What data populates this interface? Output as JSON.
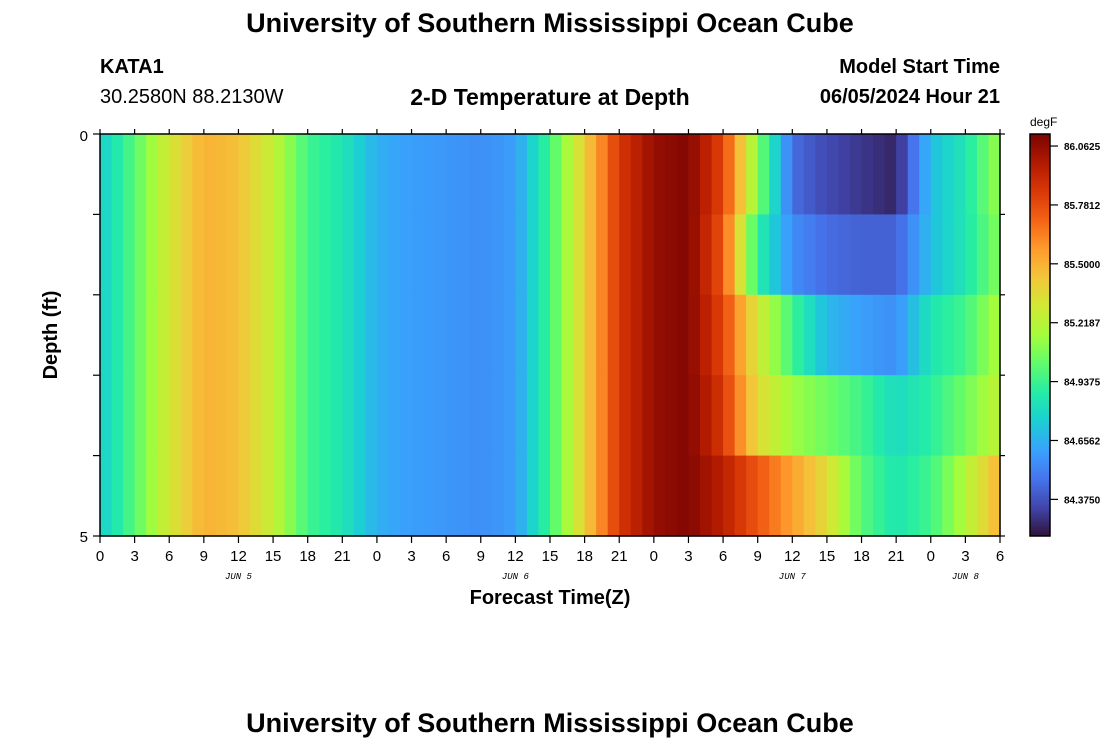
{
  "header": {
    "title": "University of Southern Mississippi Ocean Cube",
    "station_id": "KATA1",
    "coordinates": "30.2580N  88.2130W",
    "subtitle": "2-D Temperature at Depth",
    "model_start_label": "Model Start Time",
    "model_start_value": "06/05/2024 Hour 21"
  },
  "footer": {
    "title": "University of Southern Mississippi Ocean Cube"
  },
  "colors": {
    "colormap": [
      "#30123b",
      "#4145ab",
      "#4675ed",
      "#39a2fc",
      "#1bcfd4",
      "#24eca6",
      "#61fc6c",
      "#a4fc3b",
      "#d1e834",
      "#f3c63a",
      "#fe9b2d",
      "#f36315",
      "#d93806",
      "#b11901",
      "#7a0402"
    ]
  },
  "chart_data": {
    "type": "heatmap",
    "title": "2-D Temperature at Depth",
    "xlabel": "Forecast Time(Z)",
    "ylabel": "Depth (ft)",
    "y_ticks": [
      "0",
      "5"
    ],
    "ylim": [
      0,
      5
    ],
    "depth_rows": [
      "0-1",
      "1-2",
      "2-3",
      "3-4",
      "4-5"
    ],
    "x_tick_labels": [
      "0",
      "3",
      "6",
      "9",
      "12",
      "15",
      "18",
      "21",
      "0",
      "3",
      "6",
      "9",
      "12",
      "15",
      "18",
      "21",
      "0",
      "3",
      "6",
      "9",
      "12",
      "15",
      "18",
      "21",
      "0",
      "3",
      "6"
    ],
    "x_date_labels": [
      {
        "label": "JUN 5",
        "tick_index": 4
      },
      {
        "label": "JUN 6",
        "tick_index": 12
      },
      {
        "label": "JUN 7",
        "tick_index": 20
      },
      {
        "label": "JUN 8",
        "tick_index": 25
      }
    ],
    "colorbar": {
      "unit": "degF",
      "min": 84.2,
      "max": 86.12,
      "tick_labels": [
        "86.0625",
        "85.7812",
        "85.5000",
        "85.2187",
        "84.9375",
        "84.6562",
        "84.3750"
      ],
      "tick_values": [
        86.0625,
        85.7812,
        85.5,
        85.2187,
        84.9375,
        84.6562,
        84.375
      ]
    },
    "time_hours": [
      0,
      3,
      6,
      9,
      12,
      15,
      18,
      21,
      24,
      27,
      30,
      33,
      36,
      39,
      42,
      45,
      48,
      51,
      54,
      57,
      60,
      63,
      66,
      69,
      72,
      75,
      78
    ],
    "rows": [
      {
        "depth": "0-1",
        "values": [
          84.75,
          85.0,
          85.3,
          85.5,
          85.45,
          85.25,
          84.95,
          84.85,
          84.65,
          84.6,
          84.58,
          84.55,
          84.6,
          84.95,
          85.4,
          85.85,
          86.05,
          86.1,
          85.8,
          85.1,
          84.45,
          84.35,
          84.3,
          84.25,
          84.7,
          84.85,
          85.15
        ]
      },
      {
        "depth": "1-2",
        "values": [
          84.75,
          85.0,
          85.3,
          85.5,
          85.45,
          85.25,
          84.95,
          84.85,
          84.65,
          84.6,
          84.58,
          84.55,
          84.6,
          84.95,
          85.4,
          85.85,
          86.05,
          86.1,
          85.75,
          84.9,
          84.55,
          84.45,
          84.42,
          84.42,
          84.7,
          84.85,
          85.1
        ]
      },
      {
        "depth": "2-3",
        "values": [
          84.75,
          85.0,
          85.3,
          85.5,
          85.45,
          85.25,
          84.95,
          84.85,
          84.65,
          84.6,
          84.58,
          84.55,
          84.6,
          84.95,
          85.4,
          85.85,
          86.05,
          86.1,
          85.8,
          85.3,
          84.95,
          84.68,
          84.6,
          84.55,
          84.85,
          84.95,
          85.2
        ]
      },
      {
        "depth": "3-4",
        "values": [
          84.75,
          85.0,
          85.3,
          85.5,
          85.45,
          85.25,
          84.95,
          84.85,
          84.65,
          84.6,
          84.58,
          84.55,
          84.6,
          84.95,
          85.4,
          85.85,
          86.05,
          86.1,
          85.85,
          85.35,
          85.15,
          85.05,
          84.95,
          84.8,
          84.9,
          85.05,
          85.25
        ]
      },
      {
        "depth": "4-5",
        "values": [
          84.75,
          85.0,
          85.3,
          85.5,
          85.45,
          85.25,
          84.95,
          84.85,
          84.65,
          84.6,
          84.58,
          84.55,
          84.6,
          84.95,
          85.4,
          85.85,
          86.05,
          86.1,
          85.95,
          85.75,
          85.55,
          85.35,
          85.0,
          84.85,
          84.95,
          85.2,
          85.5
        ]
      }
    ]
  }
}
